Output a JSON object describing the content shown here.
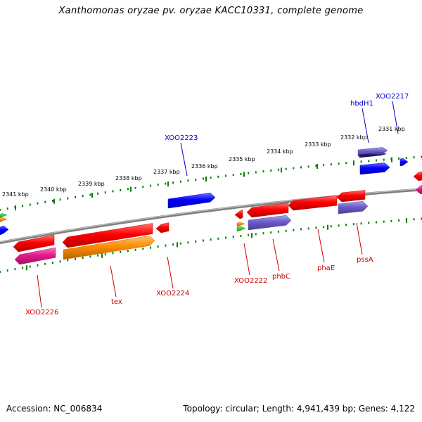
{
  "header": {
    "title": "Xanthomonas oryzae pv. oryzae KACC10331, complete genome"
  },
  "footer": {
    "accession": "Accession: NC_006834",
    "topology": "Topology: circular; Length: 4,941,439 bp; Genes: 4,122"
  },
  "colors": {
    "backbone": "#808080",
    "forward_label": "#0000cc",
    "reverse_label": "#cc0000",
    "tick": "#008000",
    "cds_red": "#ff0000",
    "cds_blue": "#0000ff",
    "cds_purple": "#6a5acd",
    "cds_orange": "#ff8c00",
    "cds_magenta": "#e6198a",
    "cds_green": "#32cd32",
    "cds_navy": "#191970"
  },
  "scale": {
    "tick_labels": [
      "2341 kbp",
      "2340 kbp",
      "2339 kbp",
      "2338 kbp",
      "2337 kbp",
      "2336 kbp",
      "2335 kbp",
      "2334 kbp",
      "2333 kbp",
      "2332 kbp",
      "2331 kbp"
    ]
  },
  "gene_labels": {
    "forward": [
      "XOO2223",
      "hbdH1",
      "XOO2217"
    ],
    "reverse": [
      "XOO2226",
      "tex",
      "XOO2224",
      "XOO2222",
      "phbC",
      "phaE",
      "pssA"
    ]
  }
}
